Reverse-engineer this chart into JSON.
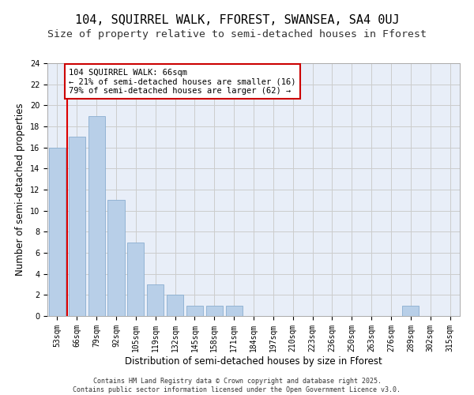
{
  "title1": "104, SQUIRREL WALK, FFOREST, SWANSEA, SA4 0UJ",
  "title2": "Size of property relative to semi-detached houses in Fforest",
  "xlabel": "Distribution of semi-detached houses by size in Fforest",
  "ylabel": "Number of semi-detached properties",
  "categories": [
    "53sqm",
    "66sqm",
    "79sqm",
    "92sqm",
    "105sqm",
    "119sqm",
    "132sqm",
    "145sqm",
    "158sqm",
    "171sqm",
    "184sqm",
    "197sqm",
    "210sqm",
    "223sqm",
    "236sqm",
    "250sqm",
    "263sqm",
    "276sqm",
    "289sqm",
    "302sqm",
    "315sqm"
  ],
  "values": [
    16,
    17,
    19,
    11,
    7,
    3,
    2,
    1,
    1,
    1,
    0,
    0,
    0,
    0,
    0,
    0,
    0,
    0,
    1,
    0,
    0
  ],
  "bar_color": "#b8cfe8",
  "bar_edge_color": "#8aaed0",
  "red_line_x": 0.5,
  "red_line_color": "#dd0000",
  "annotation_text": "104 SQUIRREL WALK: 66sqm\n← 21% of semi-detached houses are smaller (16)\n79% of semi-detached houses are larger (62) →",
  "annotation_box_color": "#ffffff",
  "annotation_box_edge_color": "#cc0000",
  "ylim": [
    0,
    24
  ],
  "yticks": [
    0,
    2,
    4,
    6,
    8,
    10,
    12,
    14,
    16,
    18,
    20,
    22,
    24
  ],
  "bg_color": "#e8eef8",
  "footer_text": "Contains HM Land Registry data © Crown copyright and database right 2025.\nContains public sector information licensed under the Open Government Licence v3.0.",
  "title_fontsize": 11,
  "subtitle_fontsize": 9.5,
  "axis_label_fontsize": 8.5,
  "tick_fontsize": 7,
  "annotation_fontsize": 7.5
}
